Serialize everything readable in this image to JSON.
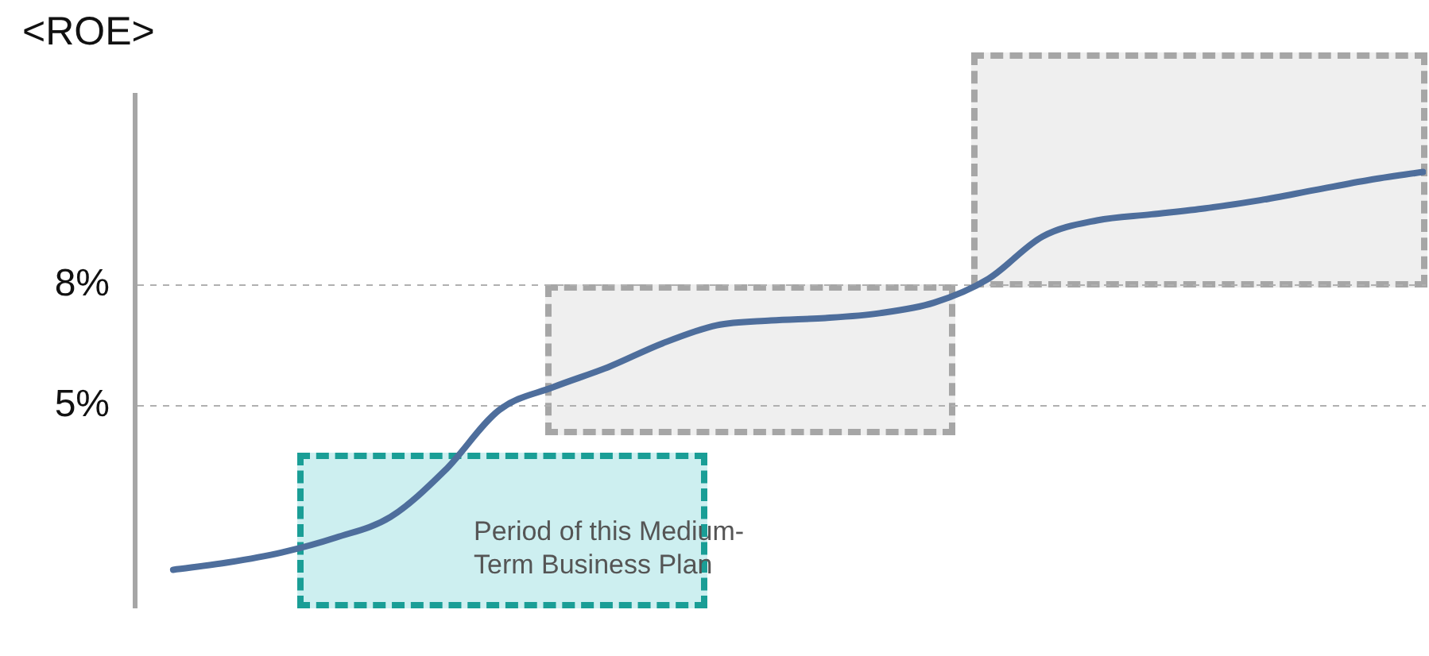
{
  "chart_data": {
    "type": "line",
    "title": "<ROE>",
    "categories": [
      null,
      null,
      null,
      null,
      null,
      null,
      null,
      null,
      null,
      null,
      null,
      null,
      null,
      null,
      null,
      null,
      null,
      null,
      null,
      null,
      null,
      null,
      null,
      null
    ],
    "series": [
      {
        "color": "#4e6e9c",
        "values": [
          0.94,
          1.12,
          1.37,
          1.74,
          2.25,
          3.4,
          4.9,
          5.47,
          5.96,
          6.55,
          7.0,
          7.12,
          7.18,
          7.3,
          7.56,
          8.15,
          9.2,
          9.6,
          9.75,
          9.9,
          10.1,
          10.35,
          10.6,
          10.8
        ]
      }
    ],
    "ylim": [
      0,
      12.7
    ],
    "yticks": [
      {
        "value": 5,
        "label": "5%"
      },
      {
        "value": 8,
        "label": "8%"
      }
    ],
    "grid": "y",
    "tick_labels": "y",
    "marker": "none",
    "line_style": "solid",
    "annotations": [
      "Period of this Medium-Term Business Plan"
    ]
  }
}
